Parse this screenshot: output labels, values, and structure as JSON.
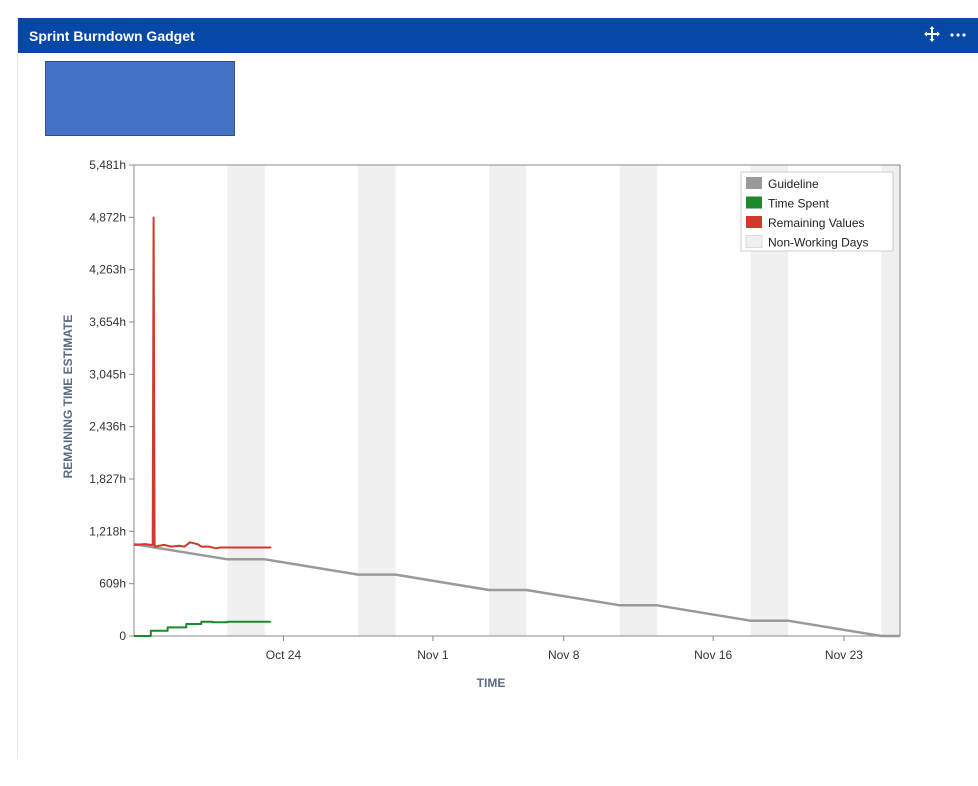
{
  "gadget": {
    "title": "Sprint Burndown Gadget",
    "icons": [
      "move-icon",
      "more-options-icon"
    ]
  },
  "colors": {
    "header": "#0747a6",
    "guideline": "#999999",
    "time_spent": "#1a8a2c",
    "remaining": "#d0392b",
    "non_working": "#f0f0f0"
  },
  "chart_data": {
    "type": "line",
    "xlabel": "TIME",
    "ylabel": "REMAINING TIME ESTIMATE",
    "x_start": "2021-10-17",
    "x_end": "2021-11-27",
    "x_ticks": [
      {
        "label": "Oct 24",
        "date": "2021-10-25"
      },
      {
        "label": "Nov 1",
        "date": "2021-11-02"
      },
      {
        "label": "Nov 8",
        "date": "2021-11-09"
      },
      {
        "label": "Nov 16",
        "date": "2021-11-17"
      },
      {
        "label": "Nov 23",
        "date": "2021-11-24"
      }
    ],
    "y_ticks": [
      "0",
      "609h",
      "1,218h",
      "1,827h",
      "2,436h",
      "3,045h",
      "3,654h",
      "4,263h",
      "4,872h",
      "5,481h"
    ],
    "ylim": [
      0,
      5481
    ],
    "grid": false,
    "legend_position": "top-right",
    "legend": [
      "Guideline",
      "Time Spent",
      "Remaining Values",
      "Non-Working Days"
    ],
    "non_working_days": [
      [
        "2021-10-22",
        "2021-10-24"
      ],
      [
        "2021-10-29",
        "2021-10-31"
      ],
      [
        "2021-11-05",
        "2021-11-07"
      ],
      [
        "2021-11-12",
        "2021-11-14"
      ],
      [
        "2021-11-19",
        "2021-11-21"
      ],
      [
        "2021-11-26",
        "2021-11-27"
      ]
    ],
    "series": [
      {
        "name": "Guideline",
        "points": [
          [
            "2021-10-17",
            1070
          ],
          [
            "2021-10-22",
            892
          ],
          [
            "2021-10-24",
            892
          ],
          [
            "2021-10-29",
            714
          ],
          [
            "2021-10-31",
            714
          ],
          [
            "2021-11-05",
            535
          ],
          [
            "2021-11-07",
            535
          ],
          [
            "2021-11-12",
            357
          ],
          [
            "2021-11-14",
            357
          ],
          [
            "2021-11-19",
            178
          ],
          [
            "2021-11-21",
            178
          ],
          [
            "2021-11-26",
            0
          ],
          [
            "2021-11-27",
            0
          ]
        ]
      },
      {
        "name": "Time Spent",
        "points": [
          [
            "2021-10-17",
            0
          ],
          [
            "2021-10-17.9",
            0
          ],
          [
            "2021-10-17.9",
            60
          ],
          [
            "2021-10-18.8",
            60
          ],
          [
            "2021-10-18.8",
            100
          ],
          [
            "2021-10-19.8",
            100
          ],
          [
            "2021-10-19.8",
            140
          ],
          [
            "2021-10-20.6",
            140
          ],
          [
            "2021-10-20.6",
            165
          ],
          [
            "2021-10-21.2",
            165
          ],
          [
            "2021-10-21.2",
            160
          ],
          [
            "2021-10-22",
            160
          ],
          [
            "2021-10-22",
            165
          ],
          [
            "2021-10-24.3",
            165
          ],
          [
            "2021-10-24.3",
            170
          ]
        ]
      },
      {
        "name": "Remaining Values",
        "points": [
          [
            "2021-10-17",
            1060
          ],
          [
            "2021-10-17.6",
            1070
          ],
          [
            "2021-10-17.9",
            1060
          ],
          [
            "2021-10-18",
            1060
          ],
          [
            "2021-10-18.05",
            4870
          ],
          [
            "2021-10-18.1",
            1040
          ],
          [
            "2021-10-18.6",
            1060
          ],
          [
            "2021-10-19",
            1040
          ],
          [
            "2021-10-19.4",
            1050
          ],
          [
            "2021-10-19.7",
            1040
          ],
          [
            "2021-10-20",
            1090
          ],
          [
            "2021-10-20.4",
            1070
          ],
          [
            "2021-10-20.6",
            1040
          ],
          [
            "2021-10-21",
            1040
          ],
          [
            "2021-10-21.4",
            1020
          ],
          [
            "2021-10-21.6",
            1030
          ],
          [
            "2021-10-24.3",
            1030
          ],
          [
            "2021-10-24.3",
            1020
          ]
        ]
      }
    ]
  }
}
